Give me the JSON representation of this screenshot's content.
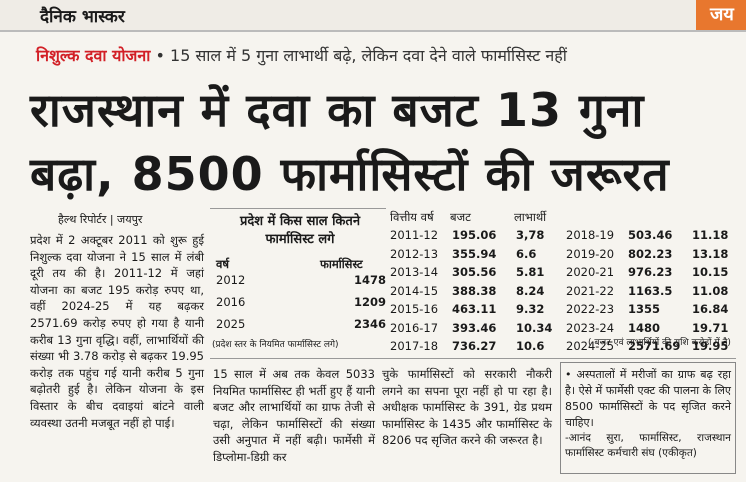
{
  "header": {
    "logo": "दैनिक भास्कर",
    "right_tag": "जय"
  },
  "kicker": {
    "label": "निशुल्क दवा योजना",
    "text": "• 15 साल में 5 गुना लाभार्थी बढ़े, लेकिन दवा देने वाले फार्मासिस्ट नहीं"
  },
  "headline": {
    "line1": "राजस्थान में दवा का बजट 13 गुना",
    "line2": "बढ़ा, 8500 फार्मासिस्टों की जरूरत"
  },
  "byline": "हैल्थ रिपोर्टर | जयपुर",
  "body": {
    "col1": "प्रदेश में 2 अक्टूबर 2011 को शुरू हुई निशुल्क दवा योजना ने 15 साल में लंबी दूरी तय की है। 2011-12 में जहां योजना का बजट 195 करोड़ रुपए था, वहीं 2024-25 में यह बढ़कर 2571.69 करोड़ रुपए हो गया है यानी करीब 13 गुना वृद्धि। वहीं, लाभार्थियों की संख्या भी 3.78 करोड़ से बढ़कर 19.95 करोड़ तक पहुंच गई यानी करीब 5 गुना बढ़ोतरी हुई है। लेकिन योजना के इस विस्तार के बीच दवाइयां बांटने वाली व्यवस्था उतनी मजबूत नहीं हो पाई।",
    "col2": "15 साल में अब तक केवल 5033 नियमित फार्मासिस्ट ही भर्ती हुए हैं यानी बजट और लाभार्थियों का ग्राफ तेजी से चढ़ा, लेकिन फार्मासिस्टों की संख्या उसी अनुपात में नहीं बढ़ी। फार्मेसी में डिप्लोमा-डिग्री कर",
    "col3": "चुके फार्मासिस्टों को सरकारी नौकरी लगने का सपना पूरा नहीं हो पा रहा है। अधीक्षक फार्मासिस्ट के 391, ग्रेड प्रथम फार्मासिस्ट के 1435 और फार्मासिस्ट के 8206 पद सृजित करने की जरूरत है।"
  },
  "quote": {
    "text": "• अस्पतालों में मरीजों का ग्राफ बढ़ रहा है। ऐसे में फार्मेसी एक्ट की पालना के लिए 8500 फार्मासिस्टों के पद सृजित करने चाहिए।",
    "attribution": "-आनंद सुरा, फार्मासिस्ट, राजस्थान फार्मासिस्ट कर्मचारी संघ (एकीकृत)"
  },
  "pharmacist_table": {
    "title": "प्रदेश में किस साल कितने फार्मासिस्ट लगे",
    "headers": [
      "वर्ष",
      "फार्मासिस्ट"
    ],
    "rows": [
      [
        "2012",
        "1478"
      ],
      [
        "2016",
        "1209"
      ],
      [
        "2025",
        "2346"
      ]
    ],
    "note": "(प्रदेश स्तर के नियमित फार्मासिस्ट लगे)"
  },
  "budget_table": {
    "headers": [
      "वित्तीय वर्ष",
      "बजट",
      "लाभार्थी"
    ],
    "rows": [
      [
        "2011-12",
        "195.06",
        "3,78"
      ],
      [
        "2012-13",
        "355.94",
        "6.6"
      ],
      [
        "2013-14",
        "305.56",
        "5.81"
      ],
      [
        "2014-15",
        "388.38",
        "8.24"
      ],
      [
        "2015-16",
        "463.11",
        "9.32"
      ],
      [
        "2016-17",
        "393.46",
        "10.34"
      ],
      [
        "2017-18",
        "736.27",
        "10.6"
      ],
      [
        "2018-19",
        "503.46",
        "11.18"
      ],
      [
        "2019-20",
        "802.23",
        "13.18"
      ],
      [
        "2020-21",
        "976.23",
        "10.15"
      ],
      [
        "2021-22",
        "1163.5",
        "11.08"
      ],
      [
        "2022-23",
        "1355",
        "16.84"
      ],
      [
        "2023-24",
        "1480",
        "19.71"
      ],
      [
        "2024-25",
        "2571.69",
        "19.95"
      ]
    ],
    "note": "( बजट एवं लाभार्थियों की राशि करोड़ों में है)"
  }
}
